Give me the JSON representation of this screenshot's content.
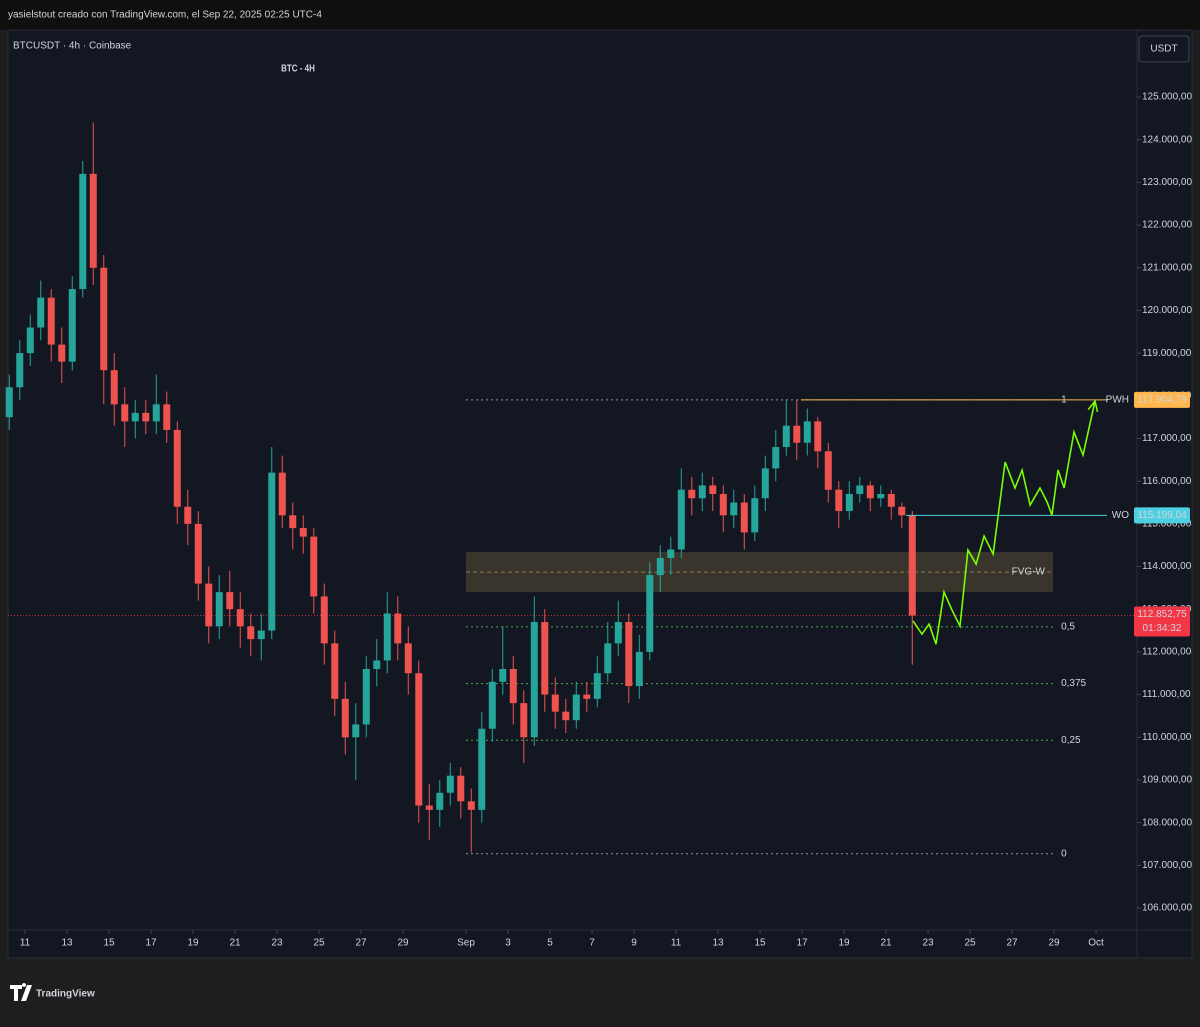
{
  "header": "yasielstout creado con TradingView.com, el Sep 22, 2025 02:25 UTC-4",
  "footer": {
    "logo": "TradingView"
  },
  "chart_data": {
    "type": "candlestick",
    "symbol_label": "BTCUSDT · 4h · Coinbase",
    "title": "BTC - 4H",
    "currency": "USDT",
    "up_color": "#26a69a",
    "down_color": "#ef5350",
    "x": [
      10.25,
      10.75,
      11.25,
      11.75,
      12.25,
      12.75,
      13.25,
      13.75,
      14.25,
      14.75,
      15.25,
      15.75,
      16.25,
      16.75,
      17.25,
      17.75,
      18.25,
      18.75,
      19.25,
      19.75,
      20.25,
      20.75,
      21.25,
      21.75,
      22.25,
      22.75,
      23.25,
      23.75,
      24.25,
      24.75,
      25.25,
      25.75,
      26.25,
      26.75,
      27.25,
      27.75,
      28.25,
      28.75,
      29.25,
      29.75,
      30.25,
      30.75,
      31.25,
      31.75,
      32.25,
      32.75,
      33.25,
      33.75,
      34.25,
      34.75,
      35.25,
      35.75,
      36.25,
      36.75,
      37.25,
      37.75,
      38.25,
      38.75,
      39.25,
      39.75,
      40.25,
      40.75,
      41.25,
      41.75,
      42.25,
      42.75,
      43.25,
      43.75,
      44.25,
      44.75,
      45.25,
      45.75,
      46.25,
      46.75,
      47.25,
      47.75,
      48.25,
      48.75,
      49.25,
      49.75,
      50.25,
      50.75,
      51.25,
      51.75,
      52.25,
      52.75,
      53.25
    ],
    "open": [
      117500,
      118200,
      119000,
      119600,
      120300,
      119200,
      118800,
      120500,
      123200,
      121000,
      118600,
      117800,
      117400,
      117600,
      117400,
      117800,
      117200,
      115400,
      115000,
      113600,
      112600,
      113400,
      113000,
      112600,
      112300,
      112500,
      116200,
      115200,
      114900,
      114700,
      113300,
      112200,
      110900,
      110000,
      110300,
      111600,
      111800,
      112900,
      112200,
      111500,
      108400,
      108300,
      108700,
      109100,
      108500,
      108300,
      110200,
      111300,
      111600,
      110800,
      110000,
      112700,
      111000,
      110600,
      110400,
      111000,
      110900,
      111500,
      112200,
      112700,
      111200,
      112000,
      113800,
      114200,
      114400,
      115800,
      115600,
      115900,
      115700,
      115200,
      115500,
      114800,
      115600,
      116300,
      116800,
      117300,
      116900,
      117400,
      116700,
      115800,
      115300,
      115700,
      115900,
      115600,
      115700,
      115400,
      115200
    ],
    "high": [
      118500,
      119300,
      119900,
      120700,
      120500,
      119600,
      120800,
      123500,
      124400,
      121300,
      119000,
      118200,
      117900,
      117900,
      118500,
      118100,
      117400,
      115800,
      115300,
      114000,
      113800,
      113900,
      113400,
      112900,
      112900,
      116800,
      116600,
      115500,
      115200,
      114900,
      113600,
      112500,
      111300,
      110800,
      111900,
      112300,
      113400,
      113300,
      112600,
      111800,
      108900,
      109000,
      109400,
      109300,
      108800,
      110600,
      111600,
      112600,
      111900,
      111100,
      113300,
      113000,
      111400,
      110900,
      111300,
      111300,
      111900,
      112700,
      113200,
      112900,
      112400,
      114100,
      114500,
      114700,
      116300,
      116100,
      116200,
      116100,
      115900,
      115800,
      115700,
      115900,
      116600,
      117200,
      117900,
      117900,
      117700,
      117500,
      116900,
      116000,
      116000,
      116100,
      116000,
      115900,
      115800,
      115500,
      115300
    ],
    "low": [
      117200,
      117900,
      118700,
      119300,
      118800,
      118300,
      118600,
      120300,
      120600,
      117800,
      117300,
      116800,
      117000,
      117100,
      117100,
      116900,
      115000,
      114500,
      113200,
      112200,
      112300,
      112600,
      112100,
      111900,
      111800,
      112300,
      114900,
      114400,
      114300,
      112900,
      111700,
      110500,
      109600,
      109000,
      110000,
      111200,
      111500,
      111800,
      111000,
      108000,
      107600,
      107900,
      108400,
      108100,
      107300,
      108000,
      109900,
      111000,
      110300,
      109400,
      109800,
      110600,
      110200,
      110100,
      110200,
      110600,
      110700,
      111300,
      111900,
      110800,
      110900,
      111800,
      113400,
      113800,
      114200,
      115200,
      115300,
      115300,
      114800,
      114900,
      114400,
      114600,
      115300,
      116000,
      116600,
      116500,
      116600,
      116300,
      115500,
      114900,
      115100,
      115500,
      115300,
      115400,
      115100,
      114900,
      111700
    ],
    "close": [
      118200,
      119000,
      119600,
      120300,
      119200,
      118800,
      120500,
      123200,
      121000,
      118600,
      117800,
      117400,
      117600,
      117400,
      117800,
      117200,
      115400,
      115000,
      113600,
      112600,
      113400,
      113000,
      112600,
      112300,
      112500,
      116200,
      115200,
      114900,
      114700,
      113300,
      112200,
      110900,
      110000,
      110300,
      111600,
      111800,
      112900,
      112200,
      111500,
      108400,
      108300,
      108700,
      109100,
      108500,
      108300,
      110200,
      111300,
      111600,
      110800,
      110000,
      112700,
      111000,
      110600,
      110400,
      111000,
      110900,
      111500,
      112200,
      112700,
      111200,
      112000,
      113800,
      114200,
      114400,
      115800,
      115600,
      115900,
      115700,
      115200,
      115500,
      114800,
      115600,
      116300,
      116800,
      117300,
      116900,
      117400,
      116700,
      115800,
      115300,
      115700,
      115900,
      115600,
      115700,
      115400,
      115200,
      112852.75
    ],
    "last_price_label": "112.852,75",
    "countdown": "01:34:32",
    "last_price_color": "#f23645",
    "xlim": [
      10.19,
      63.95
    ],
    "xticks": [
      11,
      13,
      15,
      17,
      19,
      21,
      23,
      25,
      27,
      29,
      {
        "value": 32,
        "label": "Sep"
      },
      {
        "value": 34,
        "label": "3"
      },
      {
        "value": 36,
        "label": "5"
      },
      {
        "value": 38,
        "label": "7"
      },
      {
        "value": 40,
        "label": "9"
      },
      {
        "value": 42,
        "label": "11"
      },
      {
        "value": 44,
        "label": "13"
      },
      {
        "value": 46,
        "label": "15"
      },
      {
        "value": 48,
        "label": "17"
      },
      {
        "value": 50,
        "label": "19"
      },
      {
        "value": 52,
        "label": "21"
      },
      {
        "value": 54,
        "label": "23"
      },
      {
        "value": 56,
        "label": "25"
      },
      {
        "value": 58,
        "label": "27"
      },
      {
        "value": 60,
        "label": "29"
      },
      {
        "value": 62,
        "label": "Oct"
      }
    ],
    "ylim": [
      105485,
      126570
    ],
    "yticks": [
      {
        "value": 106000,
        "label": "106.000,00"
      },
      {
        "value": 107000,
        "label": "107.000,00"
      },
      {
        "value": 108000,
        "label": "108.000,00"
      },
      {
        "value": 109000,
        "label": "109.000,00"
      },
      {
        "value": 110000,
        "label": "110.000,00"
      },
      {
        "value": 111000,
        "label": "111.000,00"
      },
      {
        "value": 112000,
        "label": "112.000,00"
      },
      {
        "value": 113000,
        "label": "113.000,00"
      },
      {
        "value": 114000,
        "label": "114.000,00"
      },
      {
        "value": 115000,
        "label": "115.000,00"
      },
      {
        "value": 116000,
        "label": "116.000,00"
      },
      {
        "value": 117000,
        "label": "117.000,00"
      },
      {
        "value": 118000,
        "label": "118.000,00"
      },
      {
        "value": 119000,
        "label": "119.000,00"
      },
      {
        "value": 120000,
        "label": "120.000,00"
      },
      {
        "value": 121000,
        "label": "121.000,00"
      },
      {
        "value": 122000,
        "label": "122.000,00"
      },
      {
        "value": 123000,
        "label": "123.000,00"
      },
      {
        "value": 124000,
        "label": "124.000,00"
      },
      {
        "value": 125000,
        "label": "125.000,00"
      }
    ],
    "grid": false,
    "fib": {
      "x": [
        32,
        60.05
      ],
      "levels": [
        {
          "ratio": 1,
          "price": 117904.79,
          "color": "#9598a1"
        },
        {
          "ratio": {
            "value": 0.5,
            "label": "0,5"
          },
          "price": 112587,
          "color": "#4caf50"
        },
        {
          "ratio": {
            "value": 0.375,
            "label": "0,375"
          },
          "price": 111258,
          "color": "#4caf50"
        },
        {
          "ratio": {
            "value": 0.25,
            "label": "0,25"
          },
          "price": 109929,
          "color": "#4caf50"
        },
        {
          "ratio": 0,
          "price": 107270,
          "color": "#9598a1"
        }
      ]
    },
    "levels": [
      {
        "name": "PWH",
        "value": 117904.79,
        "value_label": "117.904,79",
        "x_start": 47.95,
        "color": "#ffb74d"
      },
      {
        "name": "WO",
        "value": 115199.04,
        "value_label": "115.199,04",
        "x_start": 52.95,
        "color": "#4dd0e1"
      }
    ],
    "fvg": {
      "label": "FVG-W",
      "x": [
        32,
        59.95
      ],
      "top": 114339,
      "bottom": 113402,
      "mid": 113870
    },
    "projection": {
      "color": "#76ff03",
      "x": [
        53.29,
        53.71,
        54.05,
        54.38,
        54.76,
        55.14,
        55.52,
        55.9,
        56.29,
        56.67,
        57.1,
        57.67,
        58.14,
        58.48,
        58.86,
        59.33,
        59.67,
        59.9,
        60.19,
        60.48,
        60.95,
        61.38,
        61.95
      ],
      "values": [
        112723,
        112418,
        112652,
        112183,
        113402,
        112980,
        112605,
        114386,
        114058,
        114714,
        114292,
        116448,
        115839,
        116261,
        115441,
        115839,
        115511,
        115206,
        116261,
        115839,
        117151,
        116612,
        117877
      ]
    }
  }
}
